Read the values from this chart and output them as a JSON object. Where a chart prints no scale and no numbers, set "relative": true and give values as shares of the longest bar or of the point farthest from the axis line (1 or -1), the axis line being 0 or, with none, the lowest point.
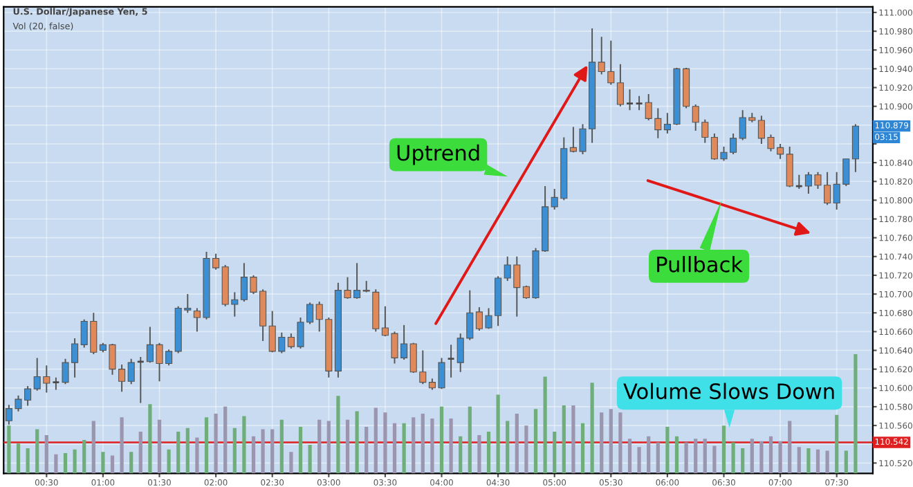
{
  "chart_data": [
    {
      "type": "candlestick",
      "title": "U.S. Dollar/Japanese Yen, 5",
      "x": [
        0.1667,
        0.25,
        0.3333,
        0.4167,
        0.5,
        0.5833,
        0.6667,
        0.75,
        0.8333,
        0.9167,
        1,
        1.0833,
        1.1667,
        1.25,
        1.3333,
        1.4167,
        1.5,
        1.5833,
        1.6667,
        1.75,
        1.8333,
        1.9167,
        2,
        2.0833,
        2.1667,
        2.25,
        2.3333,
        2.4167,
        2.5,
        2.5833,
        2.6667,
        2.75,
        2.8333,
        2.9167,
        3,
        3.0833,
        3.1667,
        3.25,
        3.3333,
        3.4167,
        3.5,
        3.5833,
        3.6667,
        3.75,
        3.8333,
        3.9167,
        4,
        4.0833,
        4.1667,
        4.25,
        4.3333,
        4.4167,
        4.5,
        4.5833,
        4.6667,
        4.75,
        4.8333,
        4.9167,
        5,
        5.0833,
        5.1667,
        5.25,
        5.3333,
        5.4167,
        5.5,
        5.5833,
        5.6667,
        5.75,
        5.8333,
        5.9167,
        6,
        6.0833,
        6.1667,
        6.25,
        6.3333,
        6.4167,
        6.5,
        6.5833,
        6.6667,
        6.75,
        6.8333,
        6.9167,
        7,
        7.0833,
        7.1667,
        7.25,
        7.3333,
        7.4167,
        7.5,
        7.5833,
        7.6667
      ],
      "ohlc": [
        [
          110.565,
          110.582,
          110.561,
          110.578
        ],
        [
          110.578,
          110.592,
          110.575,
          110.588
        ],
        [
          110.587,
          110.602,
          110.581,
          110.599
        ],
        [
          110.599,
          110.632,
          110.597,
          110.612
        ],
        [
          110.612,
          110.624,
          110.595,
          110.605
        ],
        [
          110.606,
          110.611,
          110.598,
          110.606
        ],
        [
          110.606,
          110.631,
          110.604,
          110.627
        ],
        [
          110.627,
          110.653,
          110.611,
          110.647
        ],
        [
          110.646,
          110.673,
          110.643,
          110.671
        ],
        [
          110.671,
          110.68,
          110.636,
          110.638
        ],
        [
          110.64,
          110.648,
          110.638,
          110.646
        ],
        [
          110.646,
          110.647,
          110.614,
          110.62
        ],
        [
          110.62,
          110.625,
          110.596,
          110.607
        ],
        [
          110.607,
          110.631,
          110.604,
          110.627
        ],
        [
          110.628,
          110.633,
          110.584,
          110.628
        ],
        [
          110.628,
          110.665,
          110.627,
          110.646
        ],
        [
          110.646,
          110.648,
          110.607,
          110.626
        ],
        [
          110.626,
          110.641,
          110.624,
          110.639
        ],
        [
          110.639,
          110.687,
          110.637,
          110.685
        ],
        [
          110.683,
          110.7,
          110.68,
          110.685
        ],
        [
          110.682,
          110.685,
          110.66,
          110.675
        ],
        [
          110.675,
          110.745,
          110.673,
          110.738
        ],
        [
          110.738,
          110.743,
          110.726,
          110.728
        ],
        [
          110.729,
          110.731,
          110.687,
          110.689
        ],
        [
          110.689,
          110.702,
          110.676,
          110.694
        ],
        [
          110.694,
          110.733,
          110.692,
          110.718
        ],
        [
          110.718,
          110.72,
          110.7,
          110.702
        ],
        [
          110.703,
          110.705,
          110.65,
          110.666
        ],
        [
          110.666,
          110.682,
          110.638,
          110.639
        ],
        [
          110.639,
          110.659,
          110.637,
          110.654
        ],
        [
          110.654,
          110.658,
          110.642,
          110.644
        ],
        [
          110.644,
          110.675,
          110.642,
          110.67
        ],
        [
          110.67,
          110.691,
          110.668,
          110.689
        ],
        [
          110.689,
          110.692,
          110.66,
          110.673
        ],
        [
          110.673,
          110.675,
          110.611,
          110.618
        ],
        [
          110.618,
          110.712,
          110.611,
          110.704
        ],
        [
          110.704,
          110.718,
          110.695,
          110.696
        ],
        [
          110.696,
          110.733,
          110.695,
          110.704
        ],
        [
          110.704,
          110.714,
          110.702,
          110.703
        ],
        [
          110.702,
          110.705,
          110.66,
          110.663
        ],
        [
          110.664,
          110.687,
          110.655,
          110.656
        ],
        [
          110.658,
          110.66,
          110.626,
          110.632
        ],
        [
          110.632,
          110.667,
          110.63,
          110.647
        ],
        [
          110.647,
          110.648,
          110.616,
          110.617
        ],
        [
          110.617,
          110.64,
          110.604,
          110.606
        ],
        [
          110.606,
          110.61,
          110.598,
          110.6
        ],
        [
          110.6,
          110.632,
          110.599,
          110.627
        ],
        [
          110.631,
          110.646,
          110.611,
          110.631
        ],
        [
          110.627,
          110.658,
          110.617,
          110.653
        ],
        [
          110.653,
          110.704,
          110.651,
          110.68
        ],
        [
          110.681,
          110.686,
          110.661,
          110.663
        ],
        [
          110.664,
          110.685,
          110.663,
          110.677
        ],
        [
          110.677,
          110.719,
          110.666,
          110.717
        ],
        [
          110.717,
          110.74,
          110.714,
          110.731
        ],
        [
          110.731,
          110.74,
          110.676,
          110.707
        ],
        [
          110.708,
          110.709,
          110.695,
          110.696
        ],
        [
          110.696,
          110.749,
          110.695,
          110.746
        ],
        [
          110.746,
          110.815,
          110.745,
          110.793
        ],
        [
          110.793,
          110.812,
          110.79,
          110.803
        ],
        [
          110.802,
          110.867,
          110.8,
          110.855
        ],
        [
          110.856,
          110.878,
          110.851,
          110.852
        ],
        [
          110.852,
          110.881,
          110.849,
          110.876
        ],
        [
          110.876,
          110.983,
          110.861,
          110.947
        ],
        [
          110.947,
          110.974,
          110.934,
          110.937
        ],
        [
          110.937,
          110.97,
          110.923,
          110.925
        ],
        [
          110.925,
          110.945,
          110.9,
          110.902
        ],
        [
          110.903,
          110.918,
          110.896,
          110.903
        ],
        [
          110.903,
          110.911,
          110.896,
          110.903
        ],
        [
          110.904,
          110.913,
          110.885,
          110.887
        ],
        [
          110.887,
          110.898,
          110.866,
          110.875
        ],
        [
          110.875,
          110.893,
          110.871,
          110.881
        ],
        [
          110.881,
          110.941,
          110.88,
          110.94
        ],
        [
          110.94,
          110.941,
          110.898,
          110.9
        ],
        [
          110.9,
          110.902,
          110.874,
          110.883
        ],
        [
          110.883,
          110.886,
          110.861,
          110.867
        ],
        [
          110.867,
          110.871,
          110.843,
          110.844
        ],
        [
          110.844,
          110.857,
          110.842,
          110.851
        ],
        [
          110.851,
          110.871,
          110.849,
          110.866
        ],
        [
          110.866,
          110.896,
          110.864,
          110.888
        ],
        [
          110.888,
          110.893,
          110.883,
          110.885
        ],
        [
          110.885,
          110.89,
          110.86,
          110.866
        ],
        [
          110.867,
          110.87,
          110.852,
          110.855
        ],
        [
          110.856,
          110.86,
          110.844,
          110.849
        ],
        [
          110.849,
          110.857,
          110.814,
          110.815
        ],
        [
          110.815,
          110.827,
          110.812,
          110.815
        ],
        [
          110.815,
          110.83,
          110.807,
          110.827
        ],
        [
          110.827,
          110.83,
          110.812,
          110.816
        ],
        [
          110.816,
          110.83,
          110.795,
          110.797
        ],
        [
          110.797,
          110.83,
          110.79,
          110.817
        ],
        [
          110.817,
          110.844,
          110.815,
          110.844
        ],
        [
          110.844,
          110.881,
          110.83,
          110.879
        ]
      ],
      "colors": [
        "#3b8fd4",
        "#3b8fd4",
        "#3b8fd4",
        "#3b8fd4",
        "#e08a5c",
        "#4a4a4a",
        "#3b8fd4",
        "#3b8fd4",
        "#3b8fd4",
        "#e08a5c",
        "#3b8fd4",
        "#e08a5c",
        "#e08a5c",
        "#3b8fd4",
        "#4a4a4a",
        "#3b8fd4",
        "#e08a5c",
        "#3b8fd4",
        "#3b8fd4",
        "#3b8fd4",
        "#e08a5c",
        "#3b8fd4",
        "#e08a5c",
        "#e08a5c",
        "#3b8fd4",
        "#3b8fd4",
        "#e08a5c",
        "#e08a5c",
        "#e08a5c",
        "#3b8fd4",
        "#e08a5c",
        "#3b8fd4",
        "#3b8fd4",
        "#e08a5c",
        "#e08a5c",
        "#3b8fd4",
        "#e08a5c",
        "#3b8fd4",
        "#e08a5c",
        "#e08a5c",
        "#e08a5c",
        "#e08a5c",
        "#3b8fd4",
        "#e08a5c",
        "#e08a5c",
        "#e08a5c",
        "#3b8fd4",
        "#4a4a4a",
        "#3b8fd4",
        "#3b8fd4",
        "#e08a5c",
        "#3b8fd4",
        "#3b8fd4",
        "#3b8fd4",
        "#e08a5c",
        "#e08a5c",
        "#3b8fd4",
        "#3b8fd4",
        "#3b8fd4",
        "#3b8fd4",
        "#e08a5c",
        "#3b8fd4",
        "#3b8fd4",
        "#e08a5c",
        "#e08a5c",
        "#e08a5c",
        "#4a4a4a",
        "#4a4a4a",
        "#e08a5c",
        "#e08a5c",
        "#3b8fd4",
        "#3b8fd4",
        "#e08a5c",
        "#e08a5c",
        "#e08a5c",
        "#e08a5c",
        "#3b8fd4",
        "#3b8fd4",
        "#3b8fd4",
        "#e08a5c",
        "#e08a5c",
        "#e08a5c",
        "#e08a5c",
        "#e08a5c",
        "#4a4a4a",
        "#3b8fd4",
        "#e08a5c",
        "#e08a5c",
        "#3b8fd4",
        "#3b8fd4",
        "#3b8fd4"
      ],
      "xlim": [
        0.12,
        7.82
      ],
      "xticks": [
        {
          "value": 0.5,
          "label": "00:30"
        },
        {
          "value": 1,
          "label": "01:00"
        },
        {
          "value": 1.5,
          "label": "01:30"
        },
        {
          "value": 2,
          "label": "02:00"
        },
        {
          "value": 2.5,
          "label": "02:30"
        },
        {
          "value": 3,
          "label": "03:00"
        },
        {
          "value": 3.5,
          "label": "03:30"
        },
        {
          "value": 4,
          "label": "04:00"
        },
        {
          "value": 4.5,
          "label": "04:30"
        },
        {
          "value": 5,
          "label": "05:00"
        },
        {
          "value": 5.5,
          "label": "05:30"
        },
        {
          "value": 6,
          "label": "06:00"
        },
        {
          "value": 6.5,
          "label": "06:30"
        },
        {
          "value": 7,
          "label": "07:00"
        },
        {
          "value": 7.5,
          "label": "07:30"
        }
      ],
      "ylim": [
        110.509,
        111.006
      ],
      "yticks": [
        {
          "value": 110.52,
          "label": "110.520"
        },
        {
          "value": 110.54,
          "label": null
        },
        {
          "value": 110.56,
          "label": "110.560"
        },
        {
          "value": 110.58,
          "label": "110.580"
        },
        {
          "value": 110.6,
          "label": "110.600"
        },
        {
          "value": 110.62,
          "label": "110.620"
        },
        {
          "value": 110.64,
          "label": "110.640"
        },
        {
          "value": 110.66,
          "label": "110.660"
        },
        {
          "value": 110.68,
          "label": "110.680"
        },
        {
          "value": 110.7,
          "label": "110.700"
        },
        {
          "value": 110.72,
          "label": "110.720"
        },
        {
          "value": 110.74,
          "label": "110.740"
        },
        {
          "value": 110.76,
          "label": "110.760"
        },
        {
          "value": 110.78,
          "label": "110.780"
        },
        {
          "value": 110.8,
          "label": "110.800"
        },
        {
          "value": 110.82,
          "label": "110.820"
        },
        {
          "value": 110.84,
          "label": "110.840"
        },
        {
          "value": 110.86,
          "label": null
        },
        {
          "value": 110.88,
          "label": null
        },
        {
          "value": 110.9,
          "label": "110.900"
        },
        {
          "value": 110.92,
          "label": "110.920"
        },
        {
          "value": 110.94,
          "label": "110.940"
        },
        {
          "value": 110.96,
          "label": "110.960"
        },
        {
          "value": 110.98,
          "label": "110.980"
        },
        {
          "value": 111,
          "label": "111.000"
        }
      ],
      "grid": true,
      "ref_lines": [
        {
          "axis": "y",
          "value": 110.542,
          "label": "110.542",
          "color": "#e02020"
        }
      ],
      "annotations": [
        "Uptrend",
        "Pullback",
        "Volume Slows Down",
        "03:15",
        {
          "text": "110.879",
          "y": 110.879
        }
      ]
    },
    {
      "type": "bar",
      "title": "Vol (20, false)",
      "relative": true,
      "x": [
        0.1667,
        0.25,
        0.3333,
        0.4167,
        0.5,
        0.5833,
        0.6667,
        0.75,
        0.8333,
        0.9167,
        1,
        1.0833,
        1.1667,
        1.25,
        1.3333,
        1.4167,
        1.5,
        1.5833,
        1.6667,
        1.75,
        1.8333,
        1.9167,
        2,
        2.0833,
        2.1667,
        2.25,
        2.3333,
        2.4167,
        2.5,
        2.5833,
        2.6667,
        2.75,
        2.8333,
        2.9167,
        3,
        3.0833,
        3.1667,
        3.25,
        3.3333,
        3.4167,
        3.5,
        3.5833,
        3.6667,
        3.75,
        3.8333,
        3.9167,
        4,
        4.0833,
        4.1667,
        4.25,
        4.3333,
        4.4167,
        4.5,
        4.5833,
        4.6667,
        4.75,
        4.8333,
        4.9167,
        5,
        5.0833,
        5.1667,
        5.25,
        5.3333,
        5.4167,
        5.5,
        5.5833,
        5.6667,
        5.75,
        5.8333,
        5.9167,
        6,
        6.0833,
        6.1667,
        6.25,
        6.3333,
        6.4167,
        6.5,
        6.5833,
        6.6667,
        6.75,
        6.8333,
        6.9167,
        7,
        7.0833,
        7.1667,
        7.25,
        7.3333,
        7.4167,
        7.5,
        7.5833,
        7.6667
      ],
      "xlim": [
        0.12,
        7.82
      ],
      "values": [
        0.4,
        0.25,
        0.21,
        0.37,
        0.32,
        0.16,
        0.17,
        0.2,
        0.28,
        0.44,
        0.18,
        0.15,
        0.47,
        0.18,
        0.35,
        0.58,
        0.45,
        0.2,
        0.35,
        0.38,
        0.3,
        0.47,
        0.5,
        0.56,
        0.38,
        0.48,
        0.31,
        0.37,
        0.37,
        0.45,
        0.18,
        0.39,
        0.24,
        0.45,
        0.44,
        0.65,
        0.45,
        0.52,
        0.39,
        0.55,
        0.51,
        0.42,
        0.42,
        0.47,
        0.5,
        0.46,
        0.56,
        0.46,
        0.31,
        0.56,
        0.32,
        0.35,
        0.66,
        0.44,
        0.5,
        0.4,
        0.54,
        0.81,
        0.35,
        0.57,
        0.57,
        0.42,
        0.76,
        0.51,
        0.54,
        0.51,
        0.29,
        0.22,
        0.31,
        0.26,
        0.39,
        0.31,
        0.26,
        0.29,
        0.29,
        0.23,
        0.4,
        0.26,
        0.21,
        0.29,
        0.27,
        0.31,
        0.27,
        0.44,
        0.22,
        0.21,
        0.2,
        0.19,
        0.49,
        0.19,
        1
      ],
      "colors": [
        "#6fae7b",
        "#6fae7b",
        "#6fae7b",
        "#6fae7b",
        "#9c95b0",
        "#9c95b0",
        "#6fae7b",
        "#6fae7b",
        "#6fae7b",
        "#9c95b0",
        "#6fae7b",
        "#9c95b0",
        "#9c95b0",
        "#6fae7b",
        "#9c95b0",
        "#6fae7b",
        "#9c95b0",
        "#6fae7b",
        "#6fae7b",
        "#6fae7b",
        "#9c95b0",
        "#6fae7b",
        "#9c95b0",
        "#9c95b0",
        "#6fae7b",
        "#6fae7b",
        "#9c95b0",
        "#9c95b0",
        "#9c95b0",
        "#6fae7b",
        "#9c95b0",
        "#6fae7b",
        "#6fae7b",
        "#9c95b0",
        "#9c95b0",
        "#6fae7b",
        "#9c95b0",
        "#6fae7b",
        "#9c95b0",
        "#9c95b0",
        "#9c95b0",
        "#9c95b0",
        "#6fae7b",
        "#9c95b0",
        "#9c95b0",
        "#9c95b0",
        "#6fae7b",
        "#9c95b0",
        "#6fae7b",
        "#6fae7b",
        "#9c95b0",
        "#6fae7b",
        "#6fae7b",
        "#6fae7b",
        "#9c95b0",
        "#9c95b0",
        "#6fae7b",
        "#6fae7b",
        "#6fae7b",
        "#6fae7b",
        "#9c95b0",
        "#6fae7b",
        "#6fae7b",
        "#9c95b0",
        "#9c95b0",
        "#9c95b0",
        "#9c95b0",
        "#9c95b0",
        "#9c95b0",
        "#9c95b0",
        "#6fae7b",
        "#6fae7b",
        "#9c95b0",
        "#9c95b0",
        "#9c95b0",
        "#9c95b0",
        "#6fae7b",
        "#6fae7b",
        "#6fae7b",
        "#9c95b0",
        "#9c95b0",
        "#9c95b0",
        "#9c95b0",
        "#9c95b0",
        "#9c95b0",
        "#6fae7b",
        "#9c95b0",
        "#9c95b0",
        "#6fae7b",
        "#6fae7b",
        "#6fae7b"
      ]
    }
  ]
}
